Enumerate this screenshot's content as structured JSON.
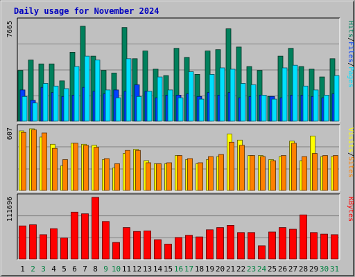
{
  "colors": {
    "background": "#c0c0c0",
    "panel": "#c0c0c0",
    "title": "#0000c0",
    "hits": "#00805c",
    "files": "#0040ff",
    "pages": "#00e0ff",
    "visits": "#ffff00",
    "sites": "#ff8000",
    "kbytes": "#ff0000",
    "weekday_tick": "#000000",
    "weekend_tick": "#008040"
  },
  "chart_data": {
    "type": "bar",
    "title": "Daily usage for November 2024",
    "x": [
      "1",
      "2",
      "3",
      "4",
      "5",
      "6",
      "7",
      "8",
      "9",
      "10",
      "11",
      "12",
      "13",
      "14",
      "15",
      "16",
      "17",
      "18",
      "19",
      "20",
      "21",
      "22",
      "23",
      "24",
      "25",
      "26",
      "27",
      "28",
      "29",
      "30",
      "31"
    ],
    "weekend_days": [
      "2",
      "3",
      "9",
      "10",
      "16",
      "17",
      "23",
      "24",
      "30",
      "31"
    ],
    "panels": [
      {
        "name": "hits-files-pages",
        "ymax_label": "7665",
        "ymax": 7665,
        "ylabels": [
          {
            "text": "Hits",
            "color": "#00805c"
          },
          {
            "text": "Files",
            "color": "#0040ff"
          },
          {
            "text": "Pages",
            "color": "#00e0ff"
          }
        ],
        "series": [
          {
            "name": "Hits",
            "values": [
              3900,
              4700,
              4400,
              4400,
              3100,
              5300,
              7300,
              5000,
              3900,
              3700,
              7200,
              4800,
              5400,
              4000,
              3500,
              5600,
              4900,
              3600,
              5400,
              5500,
              7100,
              5700,
              4200,
              3900,
              1900,
              5000,
              5600,
              4200,
              4000,
              3400,
              4800
            ],
            "colorKey": "hits"
          },
          {
            "name": "Files",
            "values": [
              2400,
              1600,
              2600,
              2200,
              1900,
              2000,
              2600,
              2300,
              2100,
              2400,
              2300,
              2800,
              2300,
              1800,
              2000,
              2000,
              2100,
              1900,
              2200,
              2000,
              2200,
              1800,
              1900,
              2000,
              1900,
              1800,
              2000,
              2000,
              1900,
              1800,
              2100
            ],
            "colorKey": "files"
          },
          {
            "name": "Pages",
            "values": [
              1900,
              1400,
              2900,
              2700,
              2500,
              4200,
              5000,
              4700,
              2400,
              1800,
              4800,
              1900,
              2300,
              3400,
              2400,
              1800,
              3800,
              1700,
              3600,
              4100,
              4000,
              2900,
              2800,
              2000,
              1700,
              4100,
              4300,
              2700,
              2400,
              2000,
              3500
            ],
            "colorKey": "pages"
          }
        ]
      },
      {
        "name": "visits-sites",
        "ymax_label": "607",
        "ymax": 607,
        "ylabels": [
          {
            "text": "Visits",
            "color": "#ffff00"
          },
          {
            "text": "Sites",
            "color": "#ff8000"
          }
        ],
        "series": [
          {
            "name": "Visits",
            "values": [
              580,
              600,
              520,
              450,
              240,
              460,
              450,
              440,
              300,
              220,
              360,
              400,
              290,
              260,
              260,
              340,
              300,
              260,
              300,
              330,
              550,
              490,
              340,
              340,
              300,
              330,
              480,
              290,
              530,
              330,
              330
            ],
            "colorKey": "visits"
          },
          {
            "name": "Sites",
            "values": [
              565,
              590,
              560,
              410,
              300,
              460,
              440,
              420,
              310,
              260,
              390,
              390,
              270,
              260,
              270,
              340,
              310,
              270,
              330,
              350,
              470,
              440,
              340,
              330,
              290,
              340,
              460,
              330,
              360,
              340,
              340
            ],
            "colorKey": "sites"
          }
        ]
      },
      {
        "name": "kbytes",
        "ymax_label": "111696",
        "ymax": 111696,
        "ylabels": [
          {
            "text": "KBytes",
            "color": "#ff0000"
          }
        ],
        "series": [
          {
            "name": "KBytes",
            "values": [
              60000,
              62000,
              44000,
              55000,
              38000,
              85000,
              82000,
              111696,
              68000,
              30000,
              57000,
              50000,
              51000,
              35000,
              27000,
              39000,
              43000,
              40000,
              53000,
              57000,
              61000,
              48000,
              48000,
              24000,
              49000,
              57000,
              54000,
              80000,
              48000,
              45000,
              44000
            ],
            "colorKey": "kbytes"
          }
        ]
      }
    ]
  }
}
